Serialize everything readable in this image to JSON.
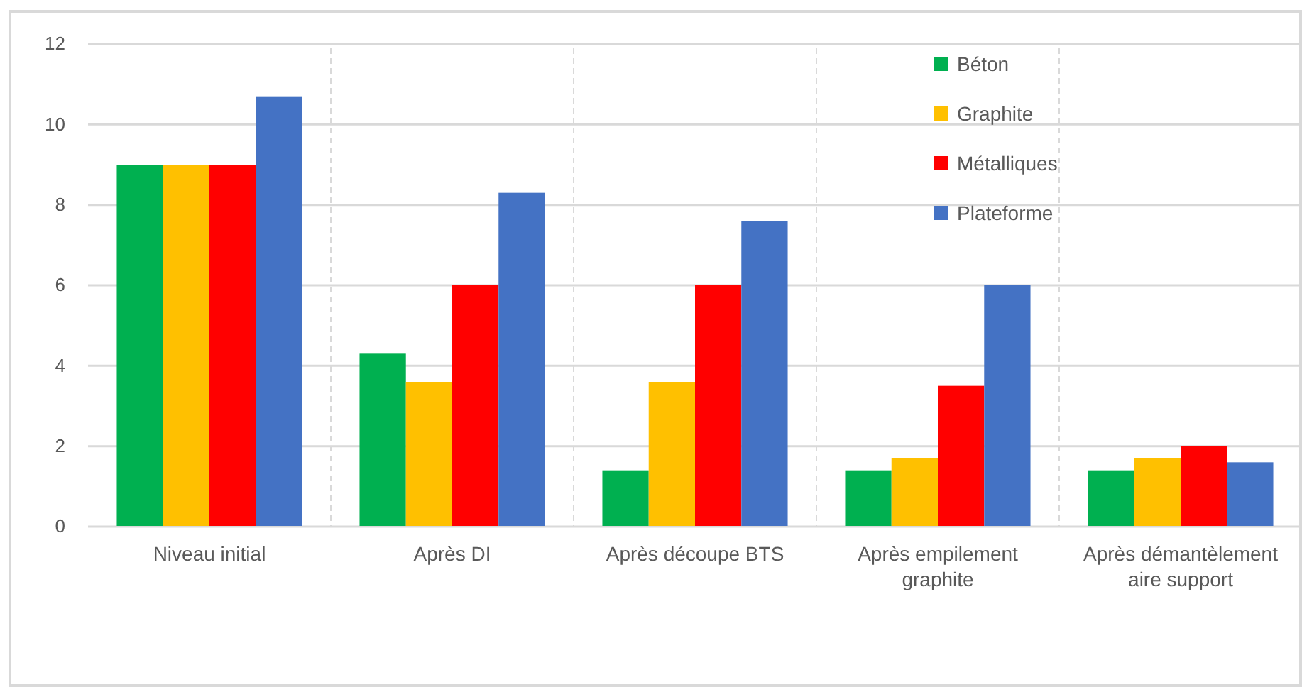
{
  "chart_data": {
    "type": "bar",
    "categories": [
      "Niveau initial",
      "Après DI",
      "Après découpe BTS",
      "Après empilement graphite",
      "Après démantèlement aire support"
    ],
    "series": [
      {
        "name": "Béton",
        "color": "#00b050",
        "values": [
          9.0,
          4.3,
          1.4,
          1.4,
          1.4
        ]
      },
      {
        "name": "Graphite",
        "color": "#ffc000",
        "values": [
          9.0,
          3.6,
          3.6,
          1.7,
          1.7
        ]
      },
      {
        "name": "Métalliques",
        "color": "#ff0000",
        "values": [
          9.0,
          6.0,
          6.0,
          3.5,
          2.0
        ]
      },
      {
        "name": "Plateforme",
        "color": "#4472c4",
        "values": [
          10.7,
          8.3,
          7.6,
          6.0,
          1.6
        ]
      }
    ],
    "ylim": [
      0,
      12
    ],
    "yticks": [
      0,
      2,
      4,
      6,
      8,
      10,
      12
    ],
    "grid": true,
    "legend": "top right"
  }
}
